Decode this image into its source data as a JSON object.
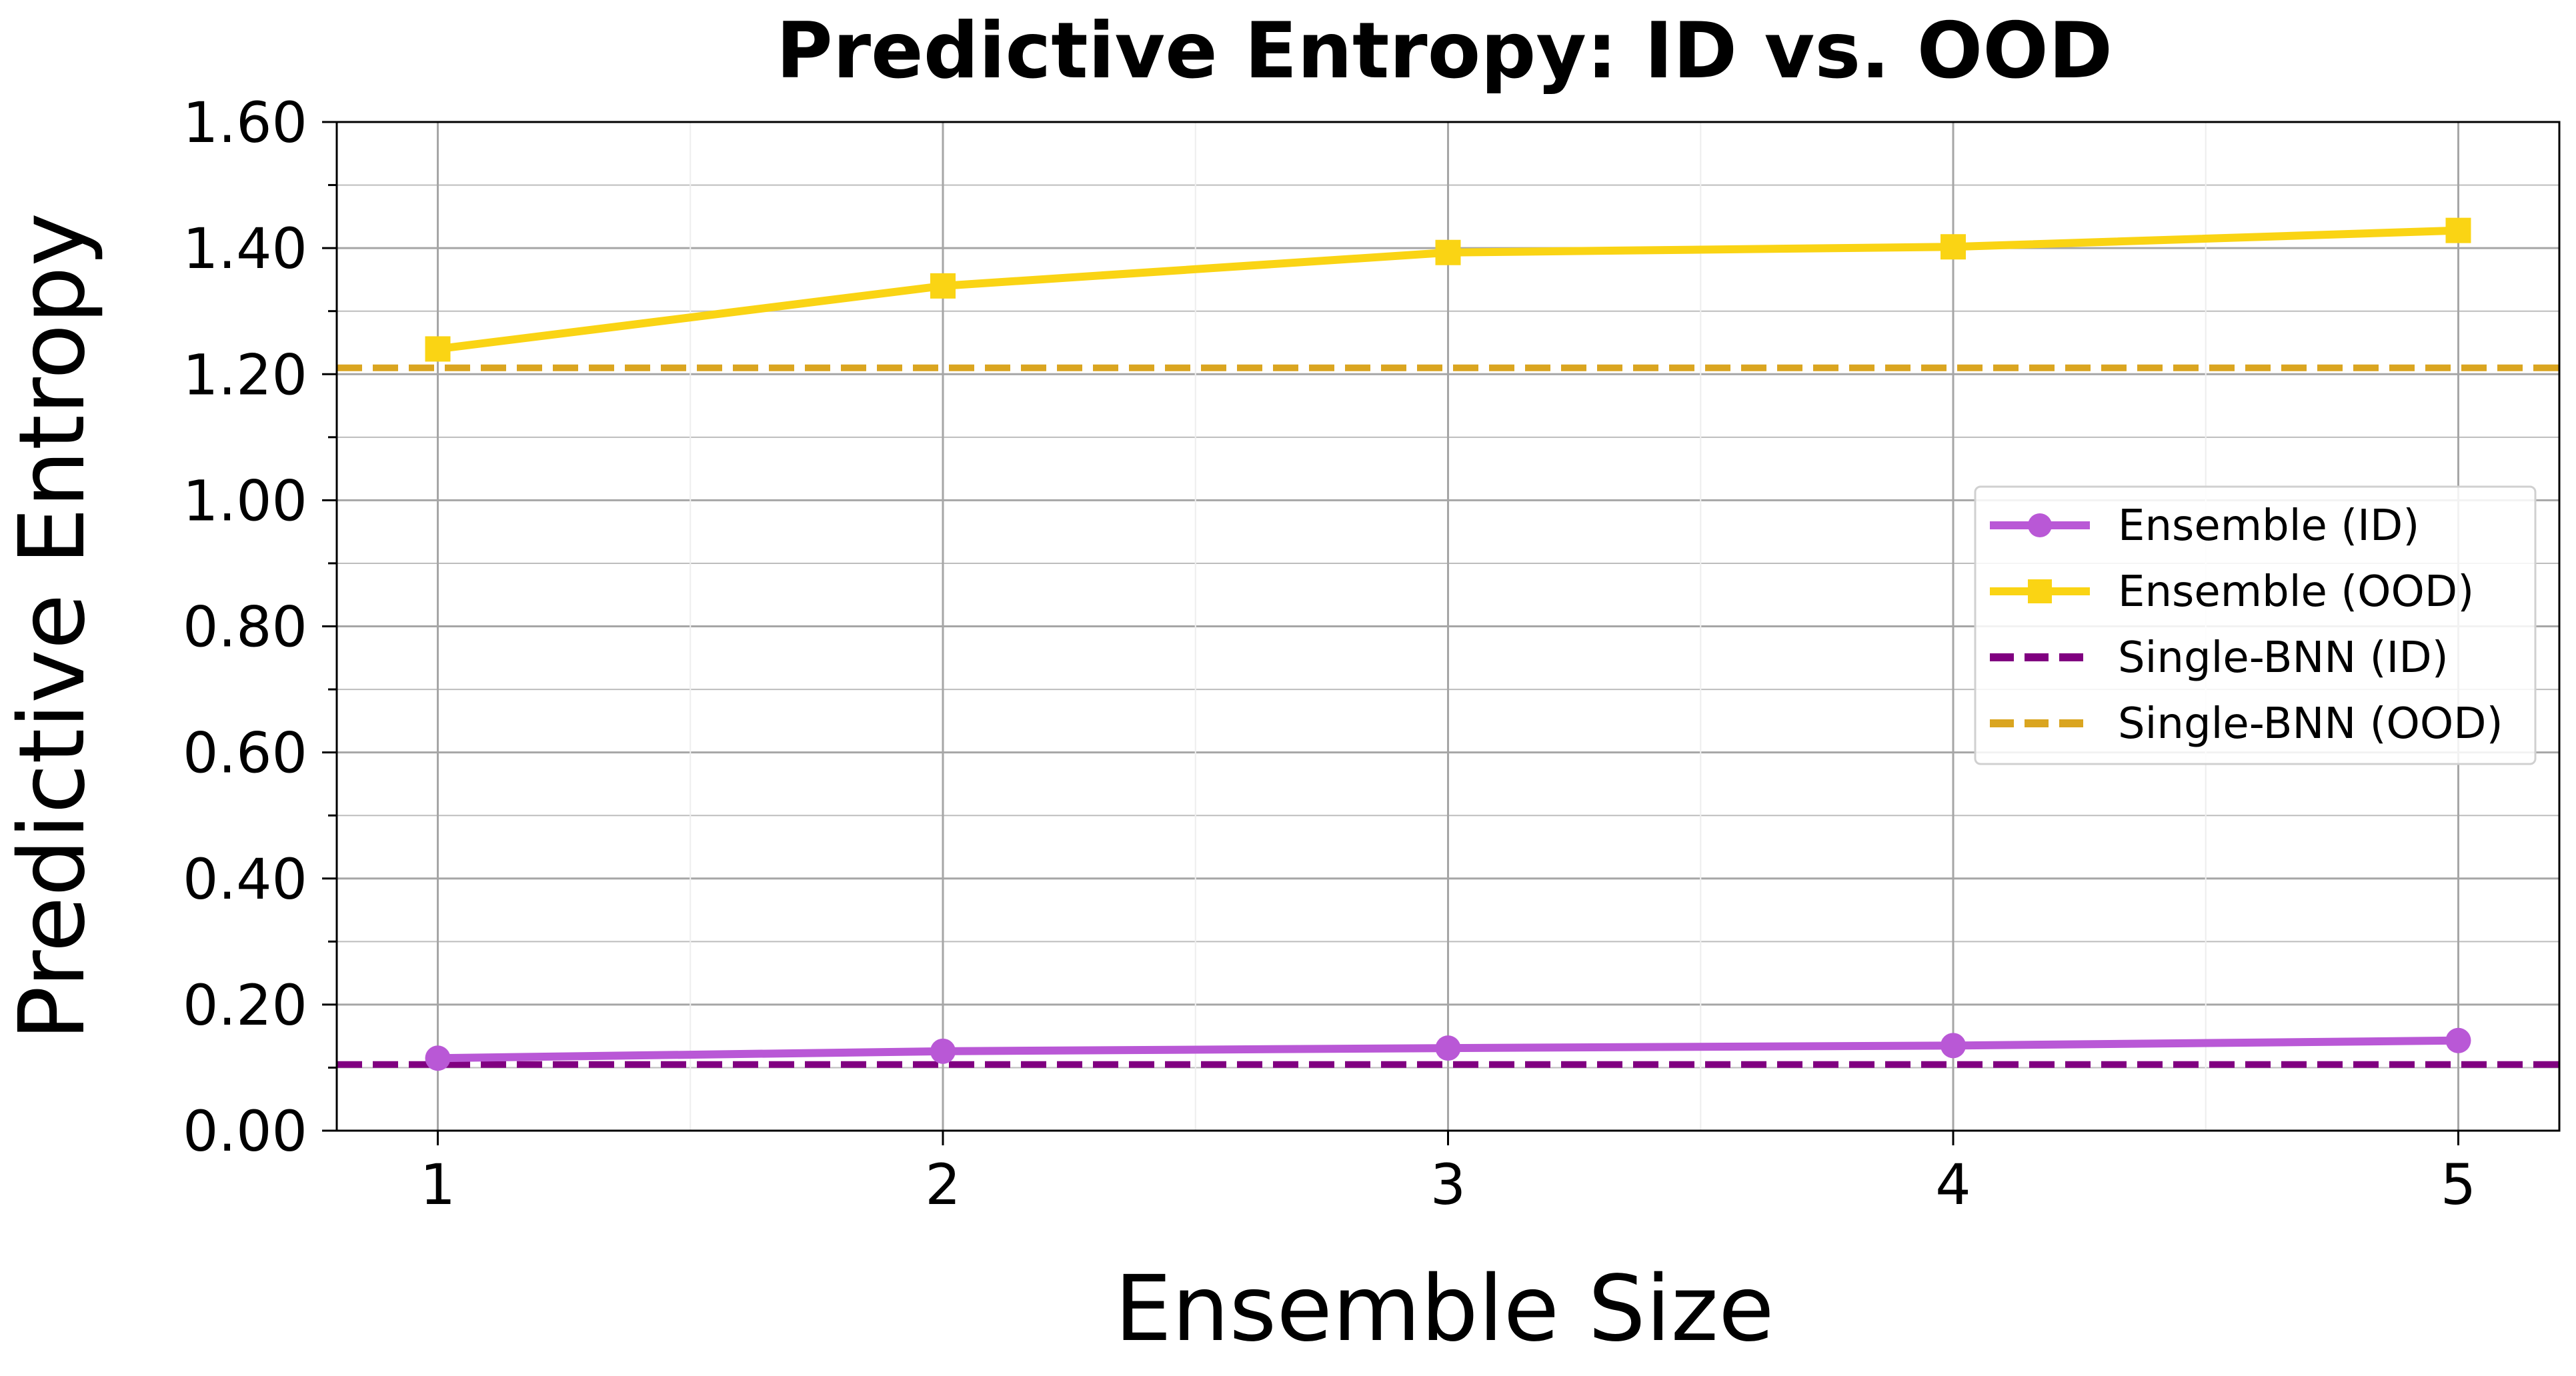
{
  "chart_data": {
    "type": "line",
    "title": "Predictive Entropy: ID vs. OOD",
    "xlabel": "Ensemble Size",
    "ylabel": "Predictive Entropy",
    "x": [
      1,
      2,
      3,
      4,
      5
    ],
    "xlim": [
      0.8,
      5.2
    ],
    "ylim": [
      0.0,
      1.6
    ],
    "y_ticks": [
      "0.00",
      "0.20",
      "0.40",
      "0.60",
      "0.80",
      "1.00",
      "1.20",
      "1.40",
      "1.60"
    ],
    "x_ticks": [
      "1",
      "2",
      "3",
      "4",
      "5"
    ],
    "grid": true,
    "legend_position": "center-right",
    "series": [
      {
        "name": "Ensemble (ID)",
        "values": [
          0.115,
          0.126,
          0.131,
          0.135,
          0.143
        ],
        "color": "#b958d6",
        "style": "solid",
        "marker": "circle"
      },
      {
        "name": "Ensemble (OOD)",
        "values": [
          1.24,
          1.34,
          1.393,
          1.402,
          1.428
        ],
        "color": "#fad414",
        "style": "solid",
        "marker": "square"
      }
    ],
    "baselines": [
      {
        "name": "Single-BNN (ID)",
        "value": 0.105,
        "color": "#800080",
        "style": "dashed"
      },
      {
        "name": "Single-BNN (OOD)",
        "value": 1.21,
        "color": "#daa520",
        "style": "dashed"
      }
    ]
  }
}
